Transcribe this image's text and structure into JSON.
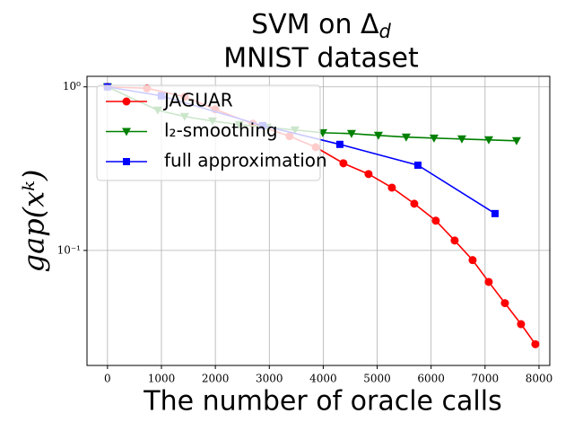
{
  "chart_data": {
    "type": "line",
    "title": "SVM on Δ",
    "title_subscript": "d",
    "subtitle": "MNIST dataset",
    "xlabel": "The number of oracle calls",
    "ylabel": "gap(xᵏ)",
    "log_y": true,
    "grid": true,
    "legend": "upper left",
    "xlim": [
      -380,
      8200
    ],
    "ylim": [
      0.0198,
      1.16
    ],
    "xticks": [
      0,
      1000,
      2000,
      3000,
      4000,
      5000,
      6000,
      7000,
      8000
    ],
    "yticks": [
      {
        "value": 1,
        "label": "10⁰"
      },
      {
        "value": 0.1,
        "label": "10⁻¹"
      }
    ],
    "series": [
      {
        "name": "JAGUAR",
        "color": "#ff0000",
        "marker": "circle",
        "x": [
          0,
          732,
          1431,
          1996,
          2695,
          3376,
          3859,
          4374,
          4840,
          5273,
          5688,
          6087,
          6436,
          6769,
          7068,
          7368,
          7667,
          7933
        ],
        "values": [
          1.0,
          0.98,
          0.87,
          0.729,
          0.595,
          0.499,
          0.428,
          0.341,
          0.293,
          0.242,
          0.193,
          0.152,
          0.115,
          0.0873,
          0.0642,
          0.0476,
          0.0354,
          0.0267
        ]
      },
      {
        "name": "l₂-smoothing",
        "color": "#008000",
        "marker": "triangle",
        "x": [
          0,
          931,
          1430,
          1946,
          2445,
          2961,
          3476,
          3992,
          4524,
          5023,
          5538,
          6054,
          6570,
          7069,
          7584
        ],
        "values": [
          1.0,
          0.72,
          0.659,
          0.618,
          0.588,
          0.566,
          0.545,
          0.524,
          0.518,
          0.505,
          0.493,
          0.486,
          0.48,
          0.474,
          0.468
        ]
      },
      {
        "name": "full approximation",
        "color": "#0000ff",
        "marker": "square",
        "x": [
          0,
          998,
          2878,
          4308,
          5755,
          7185
        ],
        "values": [
          1.0,
          0.881,
          0.58,
          0.445,
          0.332,
          0.168
        ]
      }
    ]
  }
}
